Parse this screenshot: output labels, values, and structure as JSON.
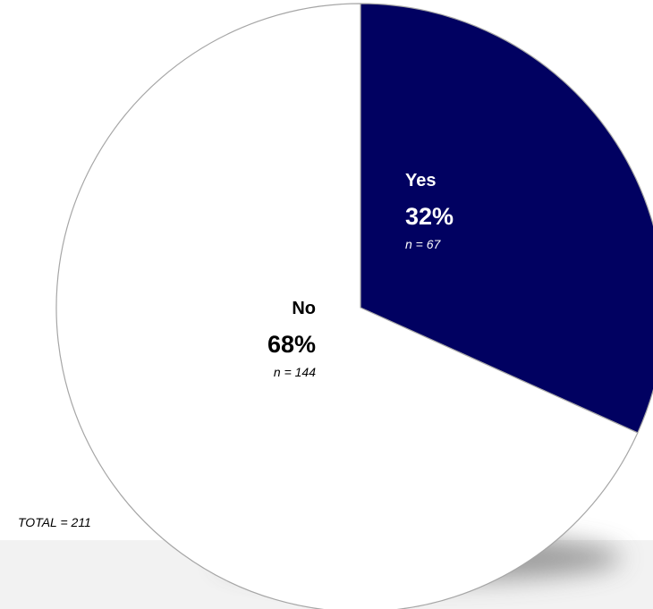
{
  "chart_data": {
    "type": "pie",
    "slices": [
      {
        "label": "Yes",
        "percent_label": "32%",
        "n_label": "n = 67",
        "value": 67,
        "color": "#010161",
        "text_color": "#ffffff"
      },
      {
        "label": "No",
        "percent_label": "68%",
        "n_label": "n = 144",
        "value": 144,
        "color": "#ffffff",
        "text_color": "#000000"
      }
    ],
    "total_label": "TOTAL = 211",
    "legend": "none",
    "colors": {
      "outline": "#a6a6a6",
      "shadow_band": "#f2f2f2",
      "shadow_blob": "#8c8c8c"
    }
  }
}
